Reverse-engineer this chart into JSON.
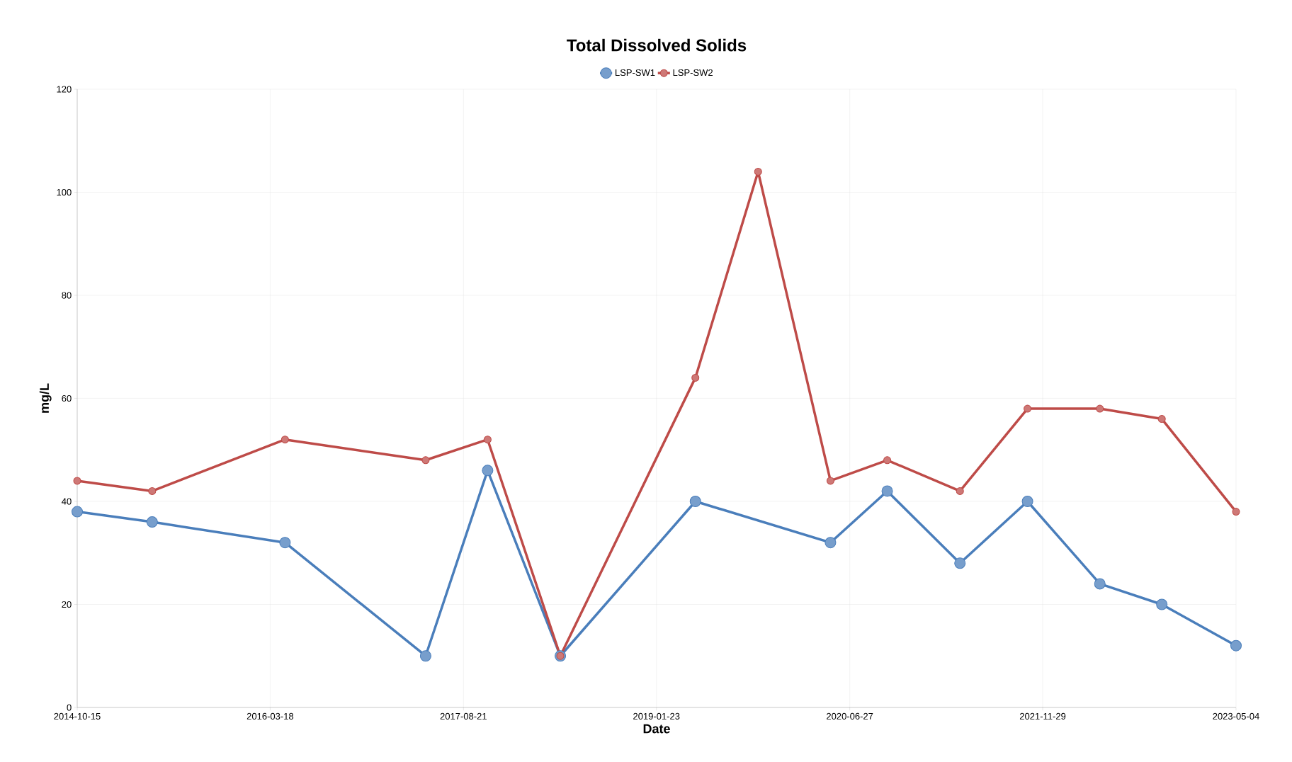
{
  "chart_data": {
    "type": "line",
    "title": "Total Dissolved Solids",
    "xlabel": "Date",
    "ylabel": "mg/L",
    "x": [
      "2014-10-15",
      "2015-05-05",
      "2016-04-27",
      "2017-05-11",
      "2017-10-25",
      "2018-05-09",
      "2019-05-08",
      "2019-10-24",
      "2020-05-06",
      "2020-10-06",
      "2021-04-20",
      "2021-10-19",
      "2022-05-02",
      "2022-10-16",
      "2023-05-04"
    ],
    "series": [
      {
        "name": "LSP-SW1",
        "color": "#4a7ebb",
        "x": [
          "2014-10-15",
          "2015-05-05",
          "2016-04-27",
          "2017-05-11",
          "2017-10-25",
          "2018-05-09",
          "2019-05-08",
          "2020-05-06",
          "2020-10-06",
          "2021-04-20",
          "2021-10-19",
          "2022-05-02",
          "2022-10-16",
          "2023-05-04"
        ],
        "values": [
          38,
          36,
          32,
          10,
          46,
          10,
          40,
          32,
          42,
          28,
          40,
          24,
          20,
          12
        ]
      },
      {
        "name": "LSP-SW2",
        "color": "#be4b48",
        "values": [
          44,
          42,
          52,
          48,
          52,
          10,
          64,
          104,
          44,
          48,
          42,
          58,
          58,
          56,
          38
        ]
      }
    ],
    "xlim": [
      "2014-10-15",
      "2023-05-04"
    ],
    "xticks": [
      "2014-10-15",
      "2016-03-18",
      "2017-08-21",
      "2019-01-23",
      "2020-06-27",
      "2021-11-29",
      "2023-05-04"
    ],
    "ylim": [
      0,
      120
    ],
    "yticks": [
      0,
      20,
      40,
      60,
      80,
      100,
      120
    ],
    "grid": true,
    "legend": "top",
    "marker": "circle",
    "line_style": "solid"
  }
}
